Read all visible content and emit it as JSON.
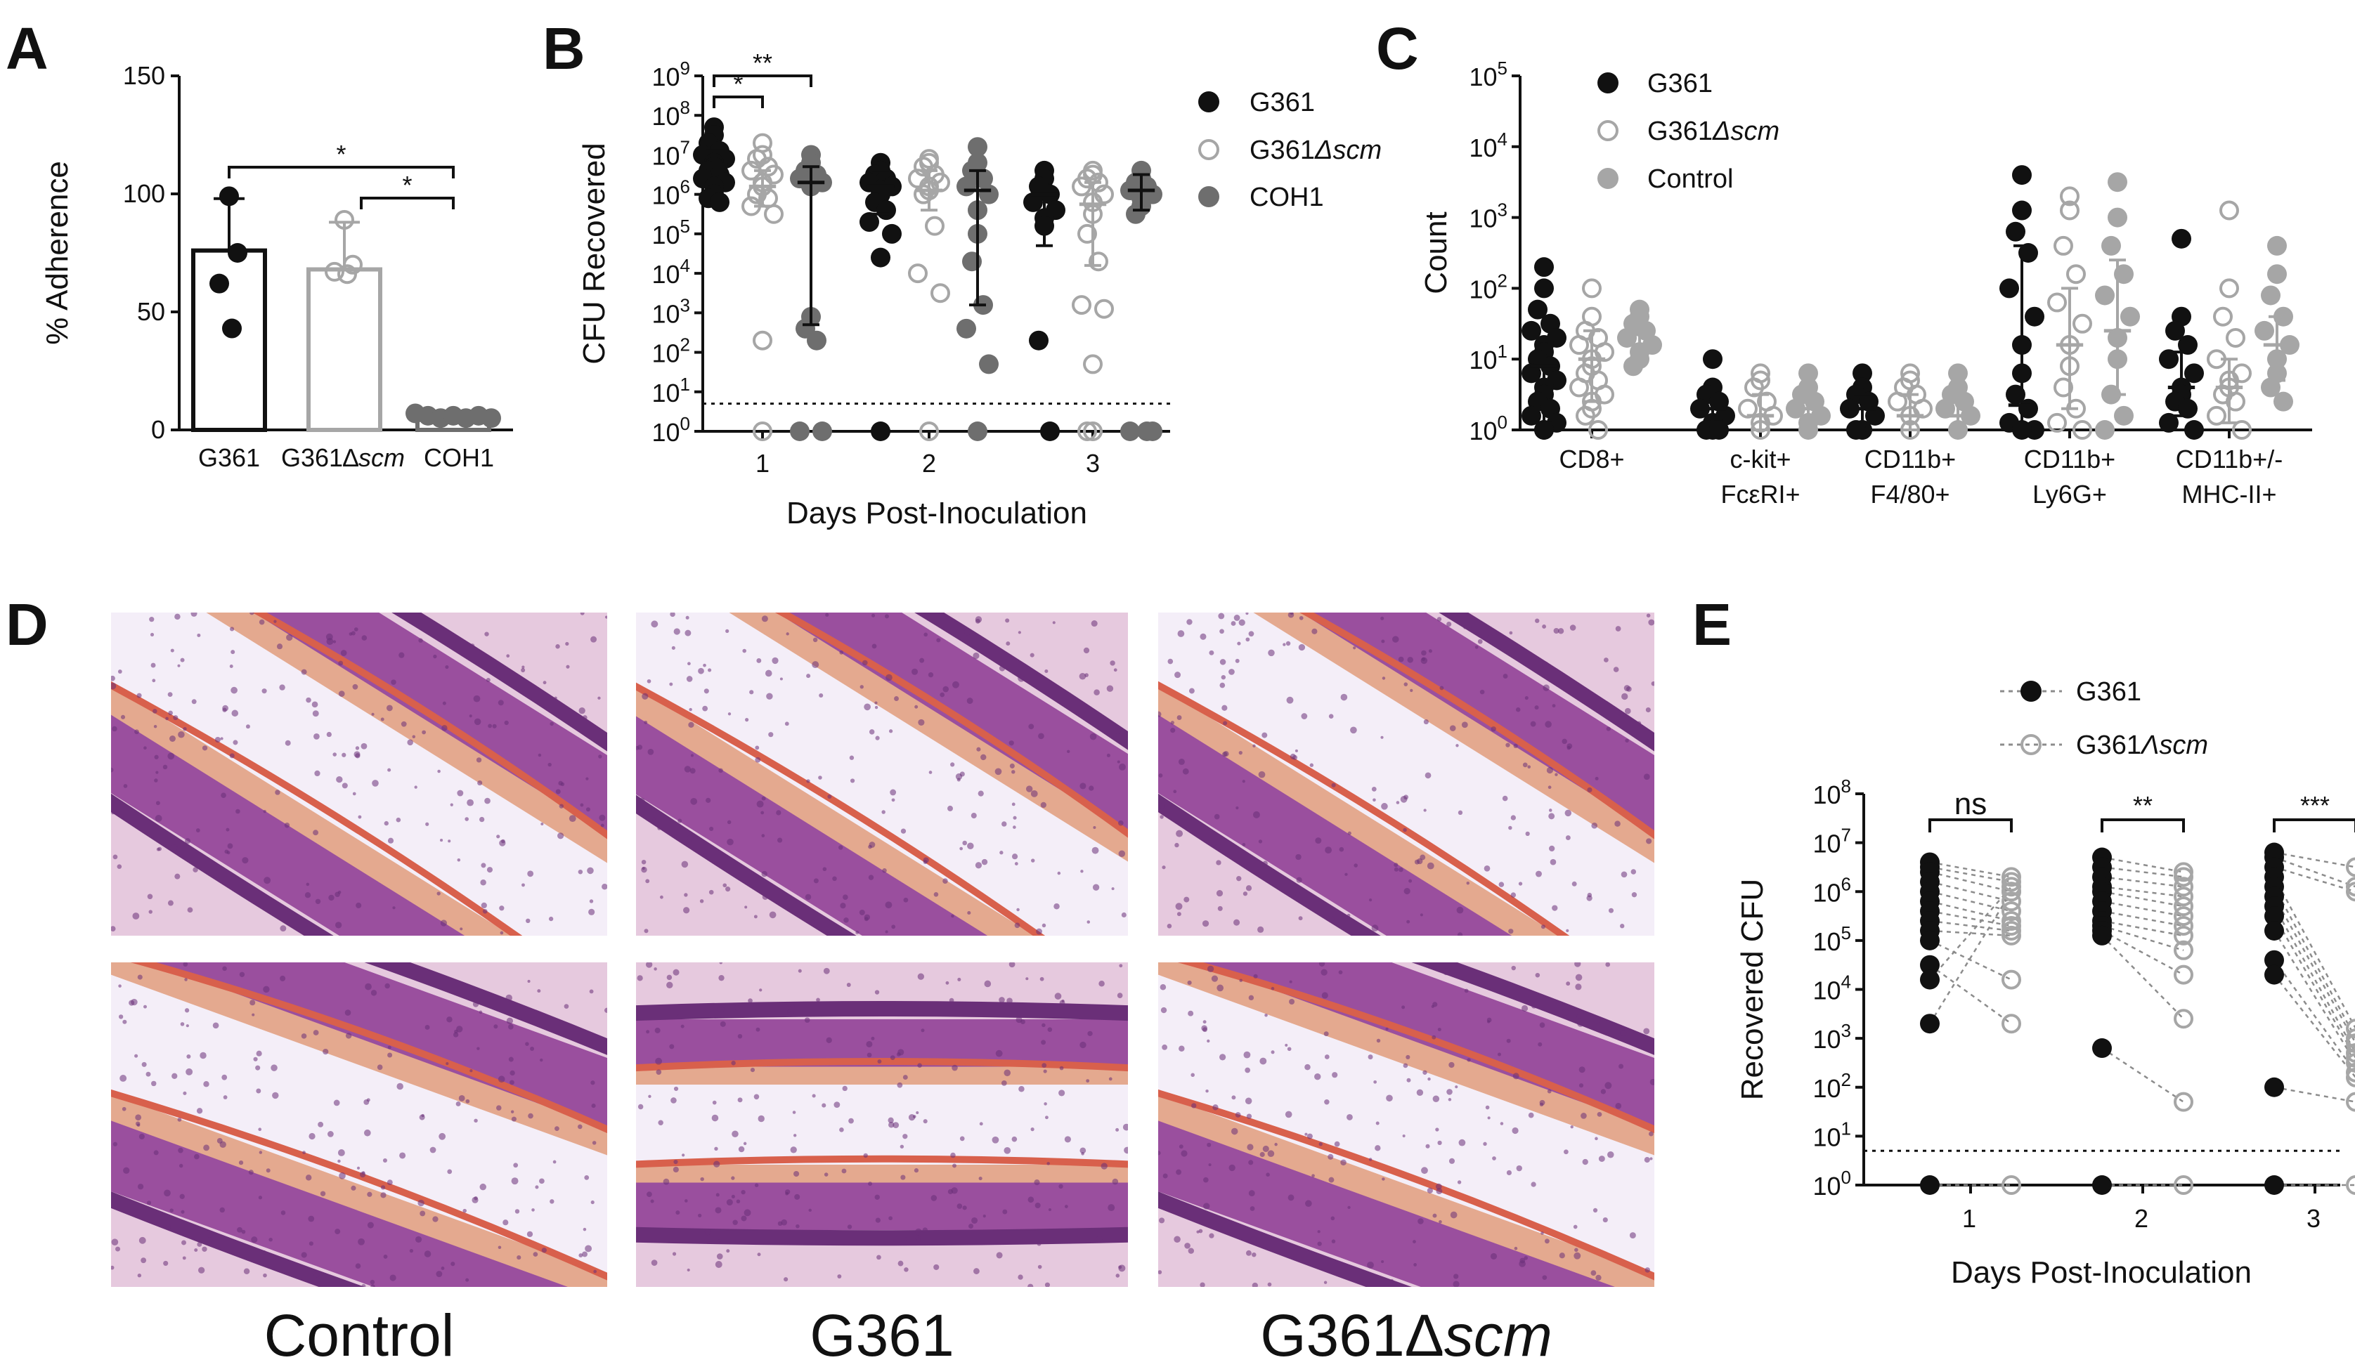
{
  "colors": {
    "g361": "#111111",
    "scm": "#a6a6a6",
    "coh1": "#6e6e6e",
    "control": "#a6a6a6",
    "tissue_bg": "#e6c9de",
    "tissue_epi": "#9a4f9e",
    "tissue_dark": "#6a2f78",
    "keratin": "#d8604c"
  },
  "panels": {
    "A": "A",
    "B": "B",
    "C": "C",
    "D": "D",
    "E": "E"
  },
  "histology": {
    "labels": {
      "control": "Control",
      "g361": "G361",
      "scm_prefix": "G361Δ",
      "scm_italic": "scm"
    }
  },
  "chart_data": [
    {
      "id": "A",
      "type": "bar",
      "categories": [
        "G361",
        "G361∆scm",
        "COH1"
      ],
      "category_display": {
        "g361": "G361",
        "scm_prefix": "G361∆",
        "scm_italic": "scm",
        "coh1": "COH1"
      },
      "ylabel": "% Adherence",
      "ylim": [
        0,
        150
      ],
      "yticks": [
        "0",
        "50",
        "100",
        "150"
      ],
      "series": [
        {
          "key": "g361",
          "mean": 76,
          "sd": 22,
          "points": [
            99,
            75,
            62,
            43
          ]
        },
        {
          "key": "scm",
          "mean": 68,
          "sd": 20,
          "points": [
            89,
            70,
            67,
            66
          ]
        },
        {
          "key": "coh1",
          "mean": 6,
          "sd": 1,
          "points": [
            7,
            6,
            5,
            6,
            5,
            6,
            5
          ]
        }
      ],
      "significance": [
        {
          "from": 0,
          "to": 2,
          "label": "*"
        },
        {
          "from": 1,
          "to": 2,
          "label": "*"
        }
      ]
    },
    {
      "id": "B",
      "type": "scatter",
      "xlabel": "Days Post-Inoculation",
      "ylabel": "CFU Recovered",
      "categories": [
        "1",
        "2",
        "3"
      ],
      "ylim_log10": [
        0,
        9
      ],
      "yticks": [
        "0",
        "1",
        "2",
        "3",
        "4",
        "5",
        "6",
        "7",
        "8",
        "9"
      ],
      "limit_of_detection_log10": 0.7,
      "legend": [
        {
          "key": "g361",
          "label": "G361"
        },
        {
          "key": "scm",
          "label_prefix": "G361",
          "label_italic": "Δscm"
        },
        {
          "key": "coh1",
          "label": "COH1"
        }
      ],
      "series": [
        {
          "key": "g361",
          "median_log10": [
            6.75,
            6.2,
            6.0
          ],
          "q1_log10": [
            6.1,
            5.5,
            4.7
          ],
          "q3_log10": [
            7.1,
            6.6,
            6.5
          ],
          "points_log10": [
            [
              7.7,
              7.5,
              7.3,
              7.1,
              7.0,
              6.9,
              6.8,
              6.7,
              6.6,
              6.5,
              6.4,
              6.3,
              6.2,
              6.0,
              5.9,
              5.8
            ],
            [
              6.8,
              6.6,
              6.5,
              6.4,
              6.3,
              6.2,
              6.1,
              6.0,
              5.8,
              5.6,
              5.3,
              5.0,
              4.4,
              0
            ],
            [
              6.6,
              6.4,
              6.2,
              6.0,
              5.8,
              5.6,
              5.4,
              5.2,
              2.3,
              0
            ]
          ]
        },
        {
          "key": "scm",
          "median_log10": [
            6.2,
            6.1,
            5.75
          ],
          "q1_log10": [
            5.7,
            5.6,
            4.2
          ],
          "q3_log10": [
            6.6,
            6.6,
            6.3
          ],
          "points_log10": [
            [
              7.3,
              7.0,
              6.9,
              6.7,
              6.6,
              6.5,
              6.3,
              6.2,
              6.0,
              5.9,
              5.7,
              5.5,
              2.3,
              0
            ],
            [
              6.9,
              6.8,
              6.7,
              6.5,
              6.4,
              6.3,
              6.2,
              6.1,
              6.0,
              5.2,
              4.0,
              3.5,
              0
            ],
            [
              6.6,
              6.5,
              6.4,
              6.3,
              6.2,
              6.0,
              5.8,
              5.5,
              5.0,
              4.3,
              3.2,
              3.1,
              1.7,
              0,
              0
            ]
          ]
        },
        {
          "key": "coh1",
          "median_log10": [
            6.3,
            6.1,
            6.1
          ],
          "q1_log10": [
            2.7,
            3.2,
            5.6
          ],
          "q3_log10": [
            6.7,
            6.6,
            6.5
          ],
          "points_log10": [
            [
              7.0,
              6.8,
              6.6,
              6.5,
              6.4,
              6.3,
              6.2,
              2.9,
              2.6,
              2.3,
              0,
              0
            ],
            [
              7.2,
              6.8,
              6.6,
              6.4,
              6.2,
              6.0,
              5.6,
              5.0,
              4.3,
              3.2,
              2.6,
              1.7,
              0
            ],
            [
              6.6,
              6.4,
              6.3,
              6.2,
              6.1,
              6.0,
              5.9,
              5.7,
              5.5,
              0,
              0,
              0
            ]
          ]
        }
      ],
      "significance": [
        {
          "label": "*",
          "from": "g361-day1",
          "to": "scm-day1"
        },
        {
          "label": "**",
          "from": "g361-day1",
          "to": "coh1-day1"
        }
      ]
    },
    {
      "id": "C",
      "type": "scatter",
      "ylabel": "Count",
      "ylim_log10": [
        0,
        5
      ],
      "yticks": [
        "0",
        "1",
        "2",
        "3",
        "4",
        "5"
      ],
      "categories": [
        "CD8+",
        "c-kit+ FcεRI+",
        "CD11b+ F4/80+",
        "CD11b+ Ly6G+",
        "CD11b+/- MHC-II+"
      ],
      "category_lines": [
        [
          "CD8+"
        ],
        [
          "c-kit+",
          "FcεRI+"
        ],
        [
          "CD11b+",
          "F4/80+"
        ],
        [
          "CD11b+",
          "Ly6G+"
        ],
        [
          "CD11b+/-",
          "MHC-II+"
        ]
      ],
      "legend": [
        {
          "key": "g361",
          "label": "G361"
        },
        {
          "key": "scm",
          "label_prefix": "G361",
          "label_italic": "Δscm"
        },
        {
          "key": "control",
          "label": "Control"
        }
      ],
      "series": [
        {
          "key": "g361",
          "median_log10": [
            0.9,
            0.3,
            0.3,
            0.35,
            0.6
          ],
          "q1_log10": [
            0.1,
            0,
            0,
            0,
            0.2
          ],
          "q3_log10": [
            1.3,
            0.6,
            0.5,
            2.6,
            1.1
          ],
          "points_log10": [
            [
              2.3,
              2.0,
              1.7,
              1.5,
              1.4,
              1.3,
              1.2,
              1.1,
              1.0,
              0.9,
              0.8,
              0.7,
              0.6,
              0.5,
              0.4,
              0.3,
              0.2,
              0.1,
              0,
              0
            ],
            [
              1.0,
              0.6,
              0.5,
              0.4,
              0.3,
              0.2,
              0.1,
              0,
              0,
              0
            ],
            [
              0.8,
              0.6,
              0.5,
              0.4,
              0.3,
              0.2,
              0,
              0,
              0
            ],
            [
              3.6,
              3.1,
              2.8,
              2.5,
              2.0,
              1.6,
              1.2,
              0.8,
              0.5,
              0.3,
              0.1,
              0,
              0
            ],
            [
              2.7,
              1.6,
              1.4,
              1.2,
              1.0,
              0.8,
              0.6,
              0.5,
              0.4,
              0.3,
              0.1,
              0
            ]
          ]
        },
        {
          "key": "scm",
          "median_log10": [
            1.0,
            0.2,
            0.2,
            1.2,
            0.6
          ],
          "q1_log10": [
            0.4,
            0,
            0,
            0.3,
            0.1
          ],
          "q3_log10": [
            1.4,
            0.5,
            0.5,
            2.0,
            1.0
          ],
          "points_log10": [
            [
              2.0,
              1.6,
              1.4,
              1.3,
              1.2,
              1.1,
              1.0,
              0.9,
              0.8,
              0.7,
              0.6,
              0.5,
              0.4,
              0.3,
              0.2,
              0
            ],
            [
              0.8,
              0.7,
              0.6,
              0.4,
              0.3,
              0.2,
              0.1,
              0
            ],
            [
              0.8,
              0.7,
              0.6,
              0.5,
              0.4,
              0.3,
              0.2,
              0
            ],
            [
              3.3,
              3.1,
              2.6,
              2.2,
              1.8,
              1.5,
              1.2,
              0.9,
              0.6,
              0.3,
              0.1,
              0
            ],
            [
              3.1,
              2.0,
              1.6,
              1.3,
              1.0,
              0.8,
              0.7,
              0.6,
              0.5,
              0.4,
              0.2,
              0
            ]
          ]
        },
        {
          "key": "control",
          "median_log10": [
            1.35,
            0.3,
            0.2,
            1.4,
            1.2
          ],
          "q1_log10": [
            1.0,
            0.1,
            0,
            0.5,
            0.7
          ],
          "q3_log10": [
            1.6,
            0.5,
            0.5,
            2.4,
            1.6
          ],
          "points_log10": [
            [
              1.7,
              1.6,
              1.5,
              1.4,
              1.3,
              1.2,
              1.1,
              1.0,
              0.9
            ],
            [
              0.8,
              0.6,
              0.5,
              0.4,
              0.3,
              0.2,
              0.1,
              0
            ],
            [
              0.8,
              0.6,
              0.5,
              0.4,
              0.3,
              0.2,
              0
            ],
            [
              3.5,
              3.0,
              2.6,
              2.2,
              1.9,
              1.6,
              1.3,
              1.0,
              0.5,
              0.2,
              0
            ],
            [
              2.6,
              2.2,
              1.9,
              1.6,
              1.4,
              1.2,
              1.0,
              0.8,
              0.6,
              0.4
            ]
          ]
        }
      ]
    },
    {
      "id": "E",
      "type": "scatter",
      "xlabel": "Days Post-Inoculation",
      "ylabel": "Recovered CFU",
      "categories": [
        "1",
        "2",
        "3"
      ],
      "ylim_log10": [
        0,
        8
      ],
      "yticks": [
        "0",
        "1",
        "2",
        "3",
        "4",
        "5",
        "6",
        "7",
        "8"
      ],
      "limit_of_detection_log10": 0.7,
      "legend": [
        {
          "key": "g361",
          "label": "G361"
        },
        {
          "key": "scm",
          "label_prefix": "G361",
          "label_italic": "Λscm"
        }
      ],
      "significance": [
        "ns",
        "**",
        "***"
      ],
      "paired": [
        [
          [
            6.6,
            6.3
          ],
          [
            6.5,
            6.2
          ],
          [
            6.4,
            6.0
          ],
          [
            6.2,
            5.8
          ],
          [
            6.0,
            5.6
          ],
          [
            5.8,
            5.4
          ],
          [
            5.6,
            5.3
          ],
          [
            5.4,
            5.2
          ],
          [
            5.2,
            5.1
          ],
          [
            5.0,
            4.2
          ],
          [
            4.5,
            3.3
          ],
          [
            4.2,
            6.1
          ],
          [
            3.3,
            6.0
          ],
          [
            0,
            0
          ]
        ],
        [
          [
            6.7,
            6.4
          ],
          [
            6.5,
            6.3
          ],
          [
            6.3,
            6.1
          ],
          [
            6.1,
            5.9
          ],
          [
            6.0,
            5.7
          ],
          [
            5.8,
            5.5
          ],
          [
            5.6,
            5.3
          ],
          [
            5.4,
            5.1
          ],
          [
            5.3,
            4.8
          ],
          [
            5.2,
            4.3
          ],
          [
            5.1,
            3.4
          ],
          [
            2.8,
            1.7
          ],
          [
            0,
            0
          ]
        ],
        [
          [
            6.8,
            6.5
          ],
          [
            6.7,
            6.1
          ],
          [
            6.5,
            6.0
          ],
          [
            6.3,
            3.2
          ],
          [
            6.1,
            3.0
          ],
          [
            5.9,
            2.9
          ],
          [
            5.7,
            2.7
          ],
          [
            5.5,
            2.6
          ],
          [
            5.2,
            2.5
          ],
          [
            4.6,
            2.3
          ],
          [
            4.3,
            2.2
          ],
          [
            2.0,
            1.7
          ],
          [
            0,
            0
          ]
        ]
      ]
    }
  ]
}
